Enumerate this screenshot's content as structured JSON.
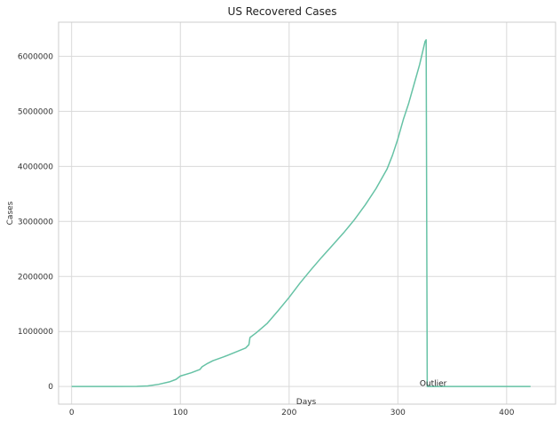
{
  "chart_data": {
    "type": "line",
    "title": "US Recovered Cases",
    "xlabel": "Days",
    "ylabel": "Cases",
    "xlim": [
      -12,
      445
    ],
    "ylim": [
      -320000,
      6620000
    ],
    "xticks": [
      0,
      100,
      200,
      300,
      400
    ],
    "yticks": [
      0,
      1000000,
      2000000,
      3000000,
      4000000,
      5000000,
      6000000
    ],
    "xtick_labels": [
      "0",
      "100",
      "200",
      "300",
      "400"
    ],
    "ytick_labels": [
      "0",
      "1000000",
      "2000000",
      "3000000",
      "4000000",
      "5000000",
      "6000000"
    ],
    "grid": true,
    "line_color": "#66c2a5",
    "series": [
      {
        "x": [
          0,
          40,
          60,
          70,
          80,
          90,
          96,
          98,
          100,
          110,
          118,
          120,
          125,
          130,
          140,
          150,
          160,
          163,
          164,
          170,
          180,
          190,
          200,
          210,
          220,
          230,
          240,
          250,
          260,
          270,
          280,
          290,
          295,
          300,
          305,
          310,
          315,
          320,
          325,
          326,
          327,
          328,
          330,
          350,
          400,
          422
        ],
        "y": [
          0,
          0,
          2000,
          10000,
          40000,
          85000,
          130000,
          160000,
          190000,
          250000,
          310000,
          360000,
          420000,
          470000,
          540000,
          620000,
          700000,
          760000,
          890000,
          980000,
          1150000,
          1380000,
          1620000,
          1880000,
          2120000,
          2350000,
          2570000,
          2790000,
          3030000,
          3300000,
          3600000,
          3950000,
          4200000,
          4500000,
          4850000,
          5150000,
          5500000,
          5850000,
          6270000,
          6300000,
          0,
          0,
          0,
          0,
          0,
          0
        ]
      }
    ],
    "annotations": [
      {
        "text": "Outlier",
        "x": 320,
        "y": 10000
      }
    ]
  }
}
